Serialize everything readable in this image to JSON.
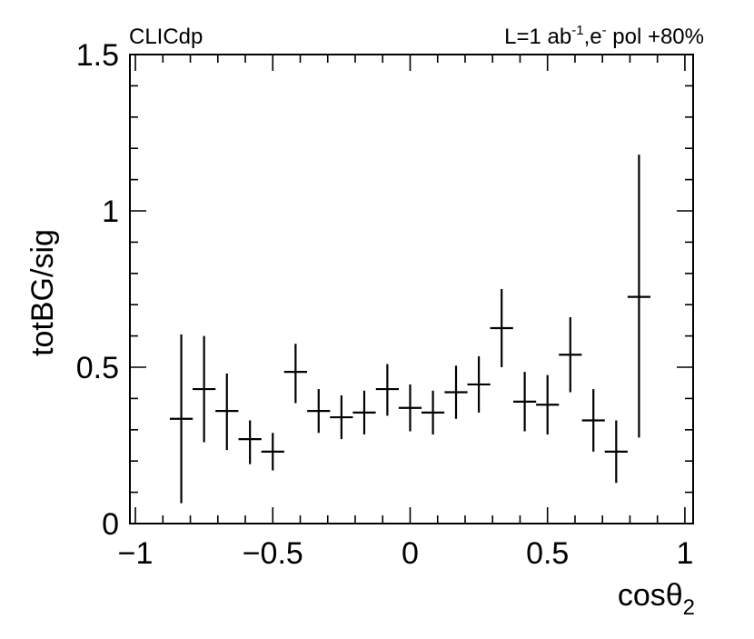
{
  "chart_data": {
    "type": "scatter",
    "title": "",
    "xlabel": "cosθ",
    "xlabel_subscript": "2",
    "ylabel": "totBG/sig",
    "annotations": {
      "left": "CLICdp",
      "right_prefix": "L=1 ab",
      "right_superscript_1": "-1",
      "right_middle": ",e",
      "right_superscript_2": "-",
      "right_suffix": " pol +80%"
    },
    "xlim": [
      -1.02,
      1.03
    ],
    "ylim": [
      0,
      1.5
    ],
    "x_ticks": [
      -1,
      -0.5,
      0,
      0.5,
      1
    ],
    "x_tick_labels": [
      "−1",
      "−0.5",
      "0",
      "0.5",
      "1"
    ],
    "y_ticks": [
      0,
      0.5,
      1,
      1.5
    ],
    "y_tick_labels": [
      "0",
      "0.5",
      "1",
      "1.5"
    ],
    "bin_halfwidth": 0.0417,
    "grid": false,
    "legend": "none",
    "series": [
      {
        "x": [
          -0.833,
          -0.75,
          -0.667,
          -0.583,
          -0.5,
          -0.417,
          -0.333,
          -0.25,
          -0.167,
          -0.083,
          0.0,
          0.083,
          0.167,
          0.25,
          0.333,
          0.417,
          0.5,
          0.583,
          0.667,
          0.75,
          0.833
        ],
        "y": [
          0.335,
          0.43,
          0.36,
          0.27,
          0.23,
          0.485,
          0.36,
          0.34,
          0.355,
          0.43,
          0.37,
          0.355,
          0.42,
          0.445,
          0.625,
          0.39,
          0.38,
          0.54,
          0.33,
          0.23,
          0.725
        ],
        "err_low": [
          0.27,
          0.17,
          0.125,
          0.08,
          0.06,
          0.1,
          0.07,
          0.07,
          0.07,
          0.085,
          0.075,
          0.07,
          0.085,
          0.09,
          0.125,
          0.095,
          0.095,
          0.12,
          0.1,
          0.1,
          0.45
        ],
        "err_high": [
          0.27,
          0.17,
          0.12,
          0.06,
          0.06,
          0.09,
          0.07,
          0.07,
          0.07,
          0.08,
          0.075,
          0.07,
          0.085,
          0.09,
          0.125,
          0.095,
          0.095,
          0.12,
          0.1,
          0.1,
          0.455
        ]
      }
    ]
  }
}
